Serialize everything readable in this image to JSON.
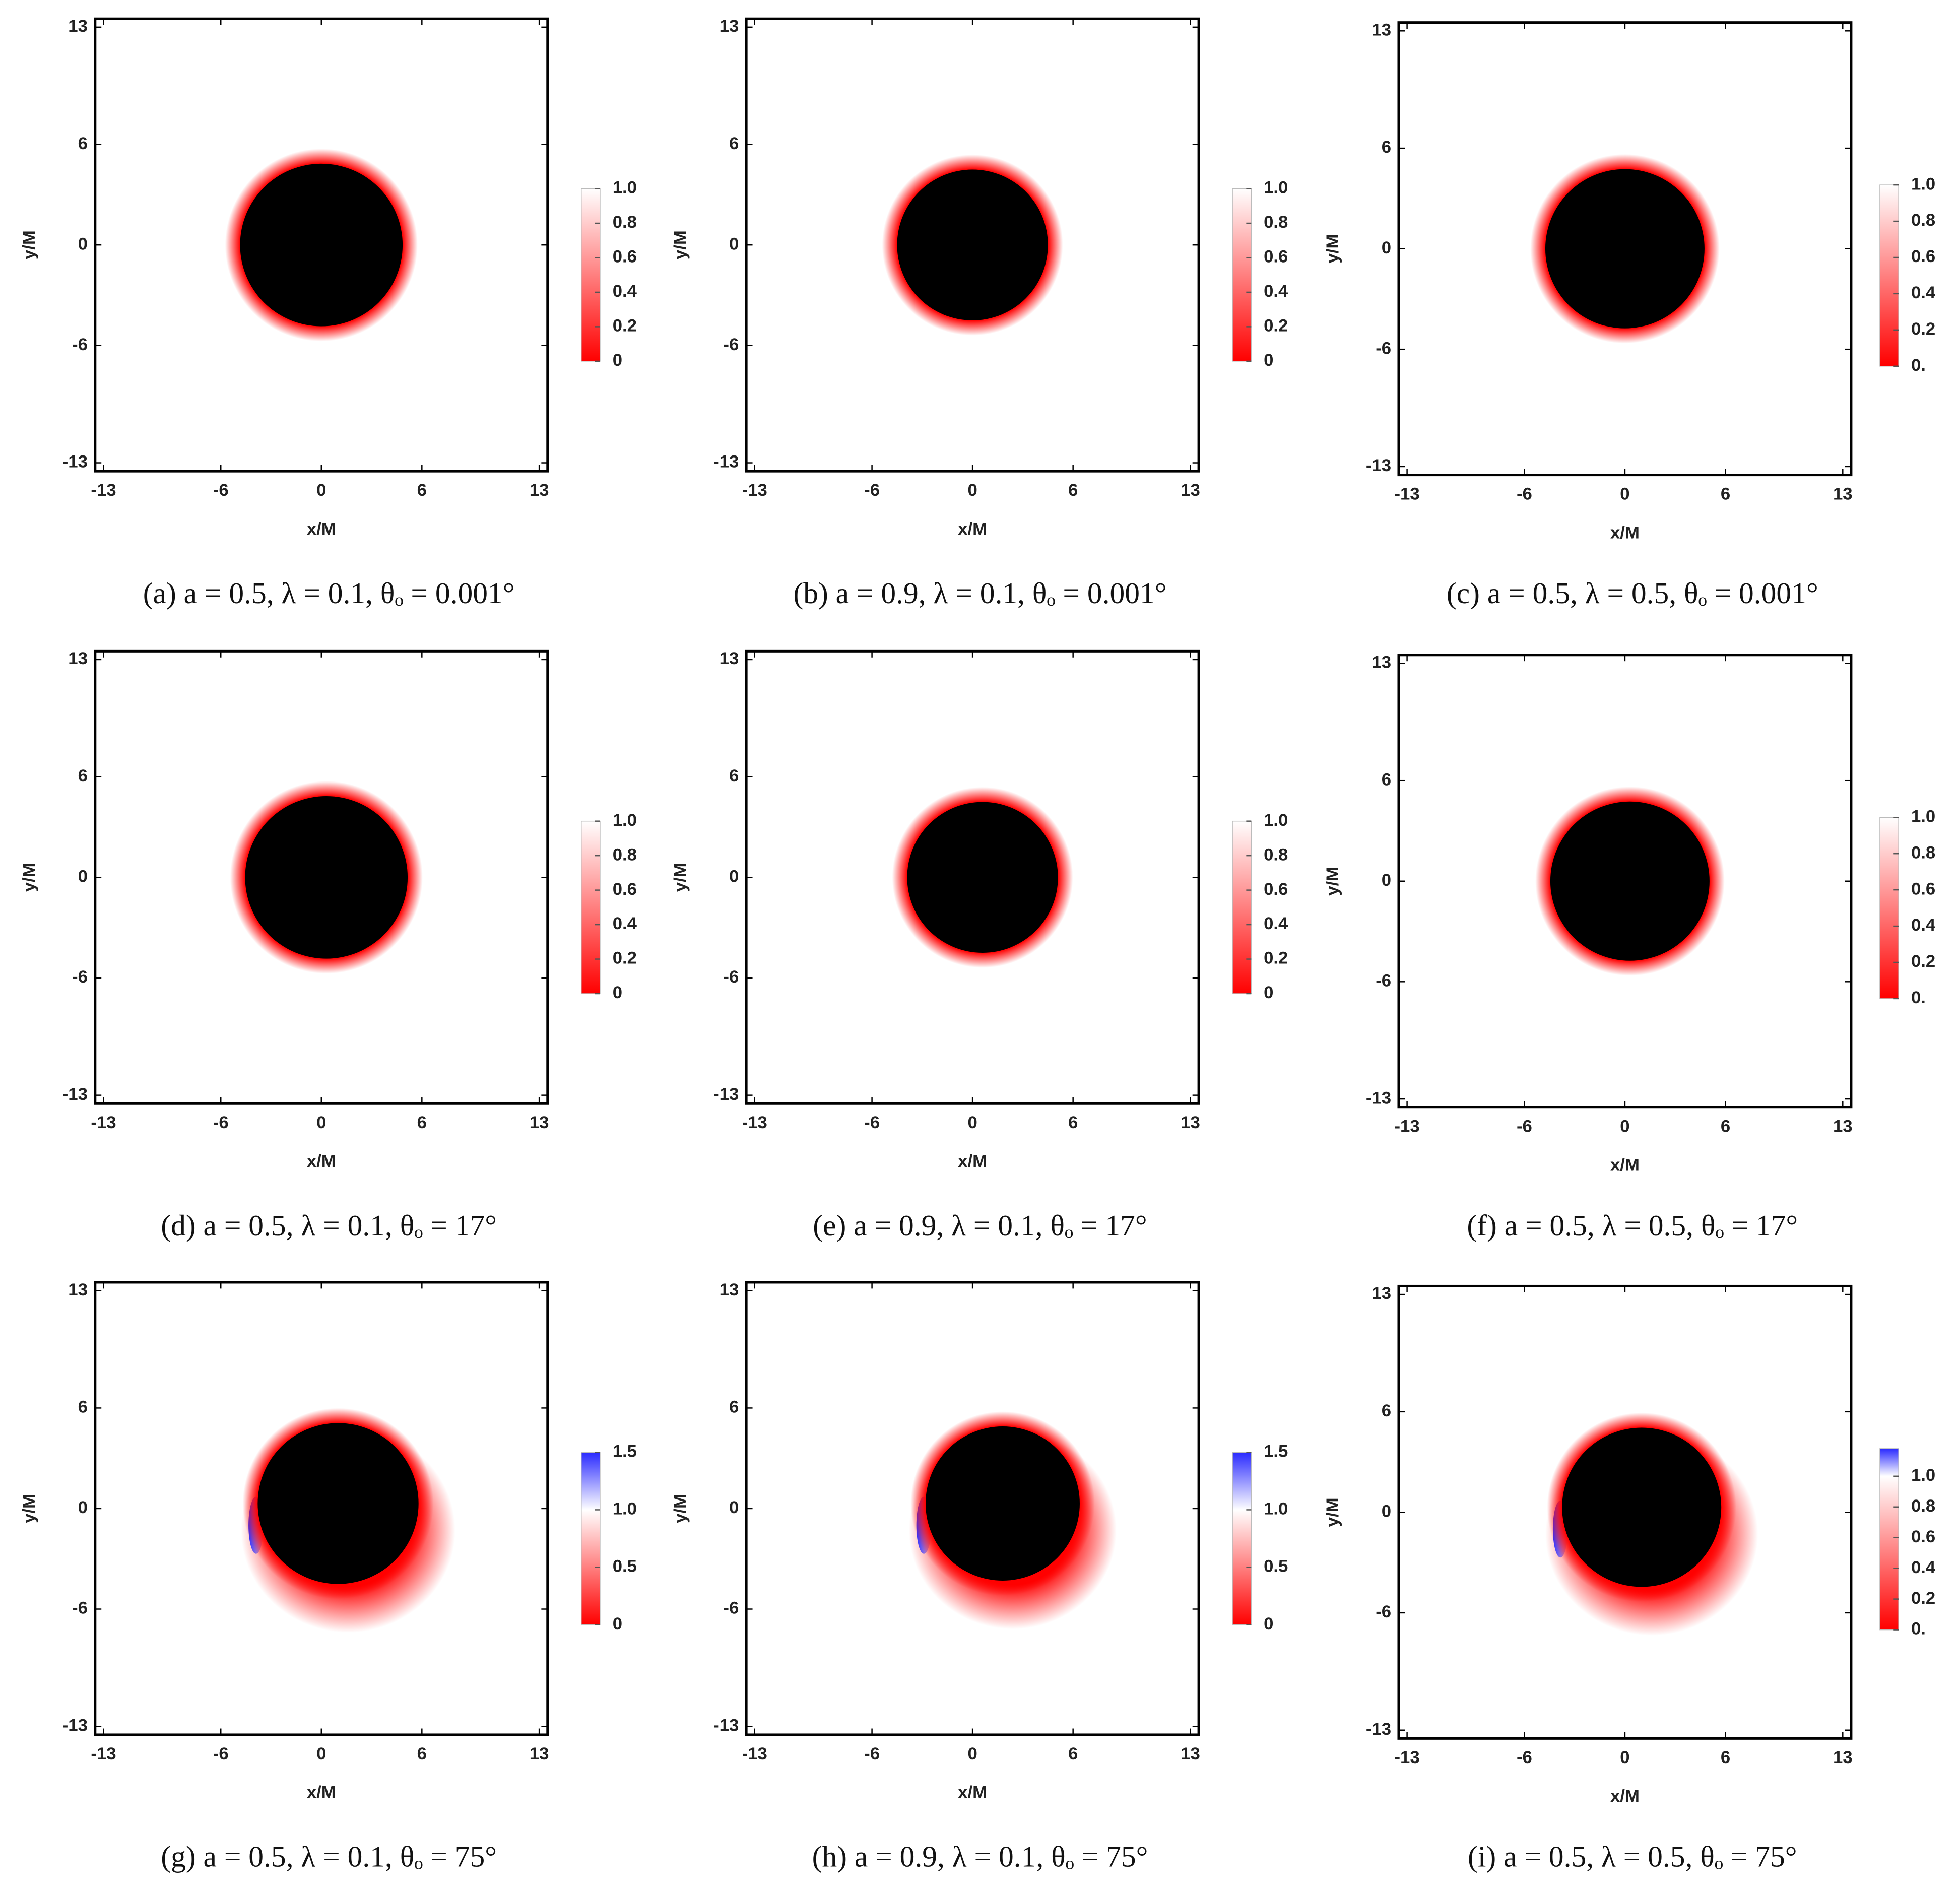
{
  "chart_data": [
    {
      "type": "density",
      "title": "(a) a = 0.5, λ = 0.1, θₒ = 0.001°",
      "xlabel": "x/M",
      "ylabel": "y/M",
      "xlim": [
        -13.5,
        13.5
      ],
      "ylim": [
        -13.5,
        13.5
      ],
      "xticks": [
        -13,
        -6,
        0,
        6,
        13
      ],
      "yticks": [
        -13,
        -6,
        0,
        6,
        13
      ],
      "clim": [
        0,
        1
      ],
      "cticks": [
        0,
        0.2,
        0.4,
        0.6,
        0.8,
        {
          "value": 1,
          "label": "1.0"
        }
      ],
      "colors": [
        "#ff0000",
        "#ffffff",
        "#2a2aff"
      ],
      "shadow": {
        "center": [
          0,
          0
        ],
        "radius": 4.85
      }
    },
    {
      "type": "density",
      "title": "(b) a = 0.9, λ = 0.1, θₒ = 0.001°",
      "xlabel": "x/M",
      "ylabel": "y/M",
      "xlim": [
        -13.5,
        13.5
      ],
      "ylim": [
        -13.5,
        13.5
      ],
      "xticks": [
        -13,
        -6,
        0,
        6,
        13
      ],
      "yticks": [
        -13,
        -6,
        0,
        6,
        13
      ],
      "clim": [
        0,
        1
      ],
      "cticks": [
        0,
        0.2,
        0.4,
        0.6,
        0.8,
        {
          "value": 1,
          "label": "1.0"
        }
      ],
      "colors": [
        "#ff0000",
        "#ffffff",
        "#2a2aff"
      ],
      "shadow": {
        "center": [
          0,
          0
        ],
        "radius": 4.5
      }
    },
    {
      "type": "density",
      "title": "(c) a = 0.5, λ = 0.5, θₒ = 0.001°",
      "xlabel": "x/M",
      "ylabel": "y/M",
      "xlim": [
        -13.5,
        13.5
      ],
      "ylim": [
        -13.5,
        13.5
      ],
      "xticks": [
        -13,
        -6,
        0,
        6,
        13
      ],
      "yticks": [
        -13,
        -6,
        0,
        6,
        13
      ],
      "clim": [
        0,
        1
      ],
      "cticks": [
        {
          "value": 0,
          "label": "0."
        },
        0.2,
        0.4,
        0.6,
        0.8,
        {
          "value": 1,
          "label": "1.0"
        }
      ],
      "colors": [
        "#ff0000",
        "#ffffff",
        "#2a2aff"
      ],
      "shadow": {
        "center": [
          0,
          0
        ],
        "radius": 4.75
      }
    },
    {
      "type": "density",
      "title": "(d) a = 0.5, λ = 0.1, θₒ = 17°",
      "xlabel": "x/M",
      "ylabel": "y/M",
      "xlim": [
        -13.5,
        13.5
      ],
      "ylim": [
        -13.5,
        13.5
      ],
      "xticks": [
        -13,
        -6,
        0,
        6,
        13
      ],
      "yticks": [
        -13,
        -6,
        0,
        6,
        13
      ],
      "clim": [
        0,
        1
      ],
      "cticks": [
        0,
        0.2,
        0.4,
        0.6,
        0.8,
        {
          "value": 1,
          "label": "1.0"
        }
      ],
      "colors": [
        "#ff0000",
        "#ffffff",
        "#2a2aff"
      ],
      "shadow": {
        "center": [
          0.3,
          0
        ],
        "radius": 4.85
      }
    },
    {
      "type": "density",
      "title": "(e) a = 0.9, λ = 0.1, θₒ = 17°",
      "xlabel": "x/M",
      "ylabel": "y/M",
      "xlim": [
        -13.5,
        13.5
      ],
      "ylim": [
        -13.5,
        13.5
      ],
      "xticks": [
        -13,
        -6,
        0,
        6,
        13
      ],
      "yticks": [
        -13,
        -6,
        0,
        6,
        13
      ],
      "clim": [
        0,
        1
      ],
      "cticks": [
        0,
        0.2,
        0.4,
        0.6,
        0.8,
        {
          "value": 1,
          "label": "1.0"
        }
      ],
      "colors": [
        "#ff0000",
        "#ffffff",
        "#2a2aff"
      ],
      "shadow": {
        "center": [
          0.6,
          0
        ],
        "radius": 4.5
      }
    },
    {
      "type": "density",
      "title": "(f) a = 0.5, λ = 0.5, θₒ = 17°",
      "xlabel": "x/M",
      "ylabel": "y/M",
      "xlim": [
        -13.5,
        13.5
      ],
      "ylim": [
        -13.5,
        13.5
      ],
      "xticks": [
        -13,
        -6,
        0,
        6,
        13
      ],
      "yticks": [
        -13,
        -6,
        0,
        6,
        13
      ],
      "clim": [
        0,
        1
      ],
      "cticks": [
        {
          "value": 0,
          "label": "0."
        },
        0.2,
        0.4,
        0.6,
        0.8,
        {
          "value": 1,
          "label": "1.0"
        }
      ],
      "colors": [
        "#ff0000",
        "#ffffff",
        "#2a2aff"
      ],
      "shadow": {
        "center": [
          0.3,
          0
        ],
        "radius": 4.75
      }
    },
    {
      "type": "density",
      "title": "(g) a = 0.5, λ = 0.1, θₒ = 75°",
      "xlabel": "x/M",
      "ylabel": "y/M",
      "xlim": [
        -13.5,
        13.5
      ],
      "ylim": [
        -13.5,
        13.5
      ],
      "xticks": [
        -13,
        -6,
        0,
        6,
        13
      ],
      "yticks": [
        -13,
        -6,
        0,
        6,
        13
      ],
      "clim": [
        0,
        1.5
      ],
      "cticks": [
        0,
        0.5,
        {
          "value": 1,
          "label": "1.0"
        },
        1.5
      ],
      "colors": [
        "#ff0000",
        "#ffffff",
        "#2a2aff"
      ],
      "shadow": {
        "center": [
          1.0,
          0.3
        ],
        "radius": 4.8
      }
    },
    {
      "type": "density",
      "title": "(h) a = 0.9, λ = 0.1, θₒ = 75°",
      "xlabel": "x/M",
      "ylabel": "y/M",
      "xlim": [
        -13.5,
        13.5
      ],
      "ylim": [
        -13.5,
        13.5
      ],
      "xticks": [
        -13,
        -6,
        0,
        6,
        13
      ],
      "yticks": [
        -13,
        -6,
        0,
        6,
        13
      ],
      "clim": [
        0,
        1.5
      ],
      "cticks": [
        0,
        0.5,
        {
          "value": 1,
          "label": "1.0"
        },
        1.5
      ],
      "colors": [
        "#ff0000",
        "#ffffff",
        "#2a2aff"
      ],
      "shadow": {
        "center": [
          1.8,
          0.3
        ],
        "radius": 4.6
      }
    },
    {
      "type": "density",
      "title": "(i) a = 0.5, λ = 0.5, θₒ = 75°",
      "xlabel": "x/M",
      "ylabel": "y/M",
      "xlim": [
        -13.5,
        13.5
      ],
      "ylim": [
        -13.5,
        13.5
      ],
      "xticks": [
        -13,
        -6,
        0,
        6,
        13
      ],
      "yticks": [
        -13,
        -6,
        0,
        6,
        13
      ],
      "clim": [
        0,
        1.18
      ],
      "cticks": [
        {
          "value": 0,
          "label": "0."
        },
        0.2,
        0.4,
        0.6,
        0.8,
        {
          "value": 1,
          "label": "1.0"
        }
      ],
      "colors": [
        "#ff0000",
        "#ffffff",
        "#2a2aff"
      ],
      "shadow": {
        "center": [
          1.0,
          0.3
        ],
        "radius": 4.75
      }
    }
  ]
}
